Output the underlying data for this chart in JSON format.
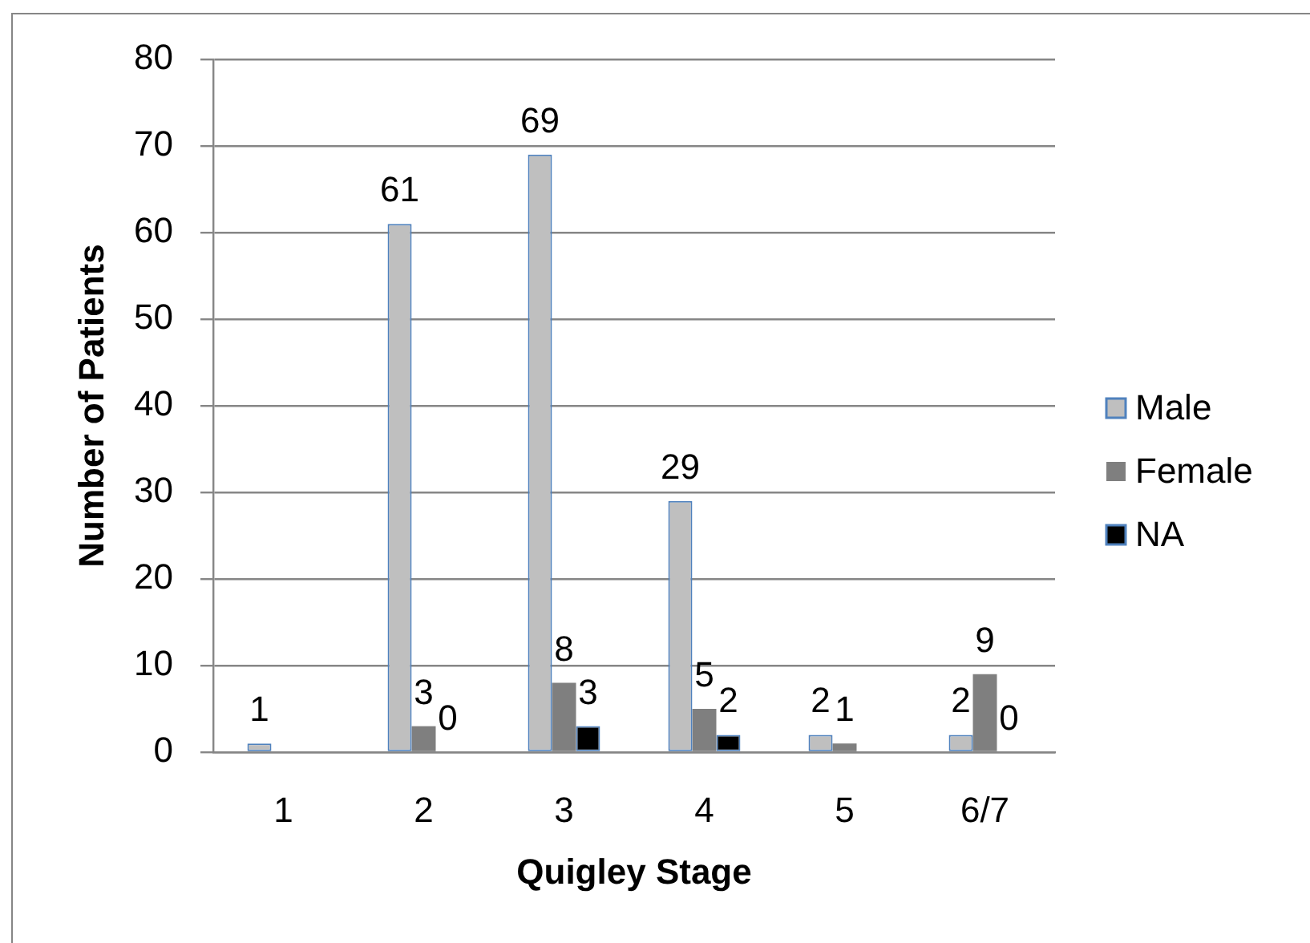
{
  "chart_data": {
    "type": "bar",
    "xlabel": "Quigley Stage",
    "ylabel": "Number of Patients",
    "categories": [
      "1",
      "2",
      "3",
      "4",
      "5",
      "6/7"
    ],
    "series": [
      {
        "name": "Male",
        "color": "#bfbfbf",
        "values": [
          1,
          61,
          69,
          29,
          2,
          2
        ]
      },
      {
        "name": "Female",
        "color": "#7f7f7f",
        "values": [
          null,
          3,
          8,
          5,
          1,
          9
        ]
      },
      {
        "name": "NA",
        "color": "#000000",
        "values": [
          null,
          0,
          3,
          2,
          null,
          0
        ]
      }
    ],
    "ylim": [
      0,
      80
    ],
    "yticks": [
      0,
      10,
      20,
      30,
      40,
      50,
      60,
      70,
      80
    ],
    "grid": "y",
    "legend": "right",
    "data_labels": true
  }
}
